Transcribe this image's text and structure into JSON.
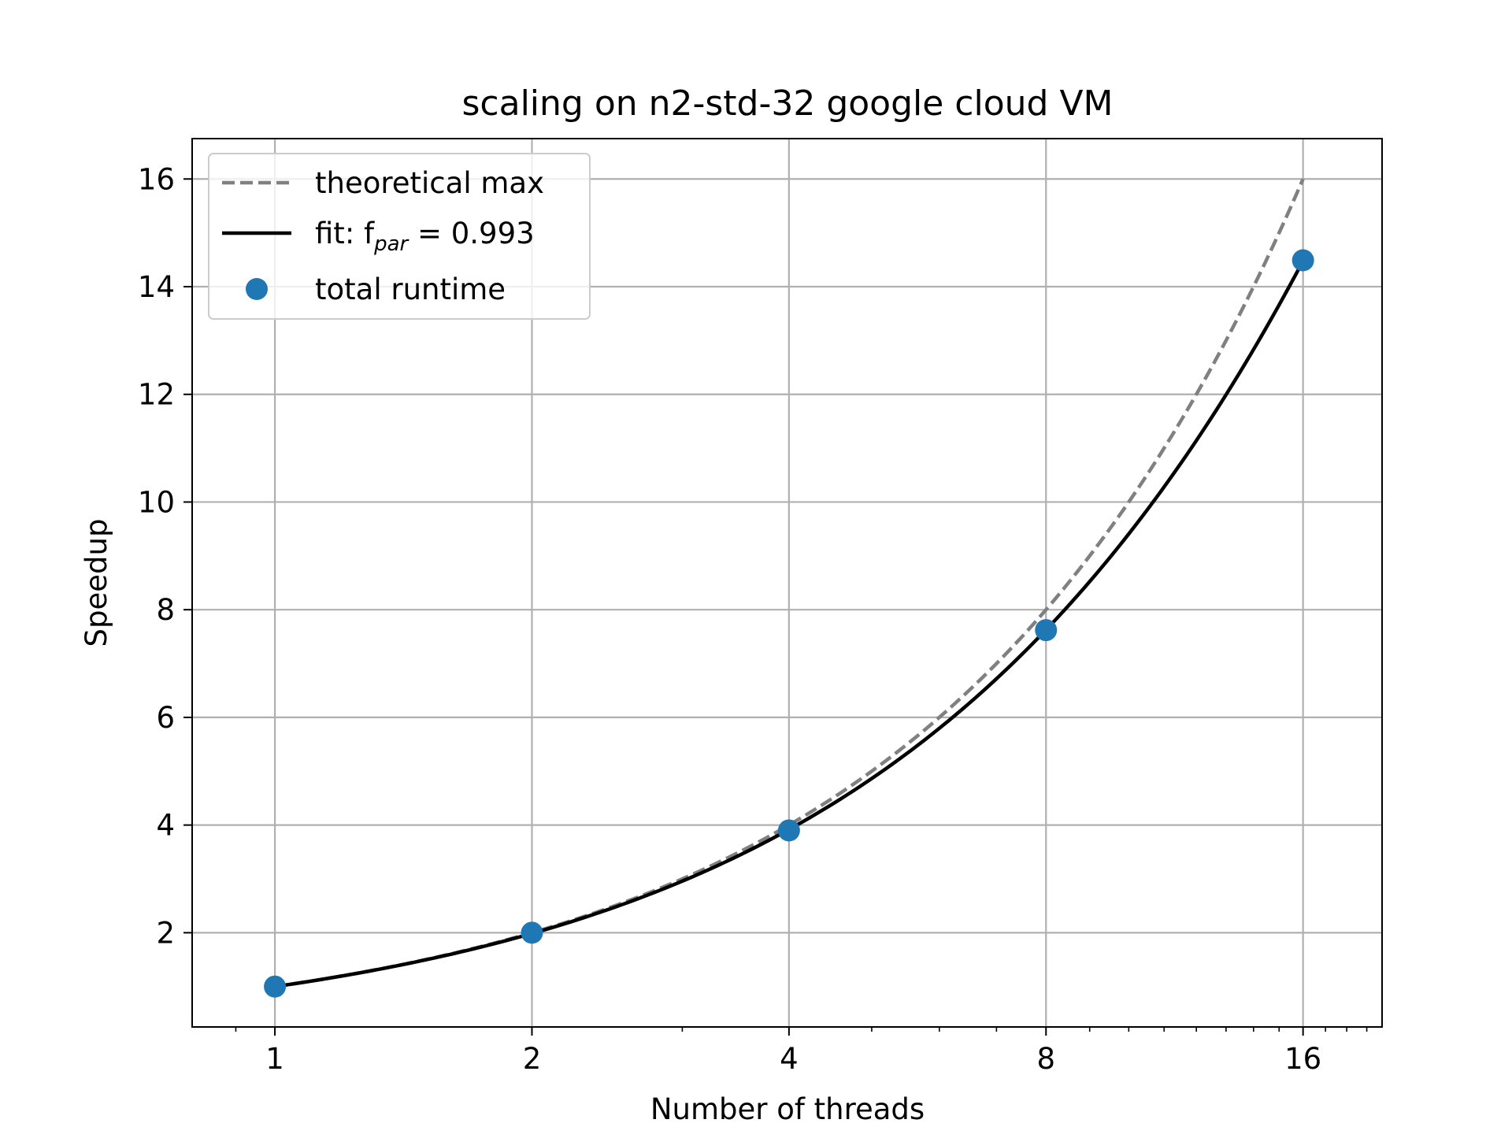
{
  "chart_data": {
    "type": "line",
    "title": "scaling on n2-std-32 google cloud VM",
    "xlabel": "Number of threads",
    "ylabel": "Speedup",
    "xscale": "log2",
    "xlim": [
      0.8,
      19.8
    ],
    "ylim": [
      0.25,
      16.75
    ],
    "xticks": [
      1,
      2,
      4,
      8,
      16
    ],
    "xtick_labels": [
      "1",
      "2",
      "4",
      "8",
      "16"
    ],
    "yticks": [
      2,
      4,
      6,
      8,
      10,
      12,
      14,
      16
    ],
    "ytick_labels": [
      "2",
      "4",
      "6",
      "8",
      "10",
      "12",
      "14",
      "16"
    ],
    "grid": true,
    "legend_position": "upper-left",
    "series": [
      {
        "name": "theoretical max",
        "kind": "line",
        "style": "dashed",
        "color": "#808080",
        "x": [
          1,
          16
        ],
        "y": [
          1,
          16
        ]
      },
      {
        "name": "fit: f",
        "name_sub": "par",
        "name_suffix": " = 0.993",
        "kind": "line",
        "style": "solid",
        "color": "#000000",
        "f_par": 0.993,
        "x": [
          1,
          16
        ]
      },
      {
        "name": "total runtime",
        "kind": "scatter",
        "color": "#1f77b4",
        "x": [
          1,
          2,
          4,
          8,
          16
        ],
        "y": [
          1.0,
          2.0,
          3.9,
          7.62,
          14.49
        ]
      }
    ]
  }
}
